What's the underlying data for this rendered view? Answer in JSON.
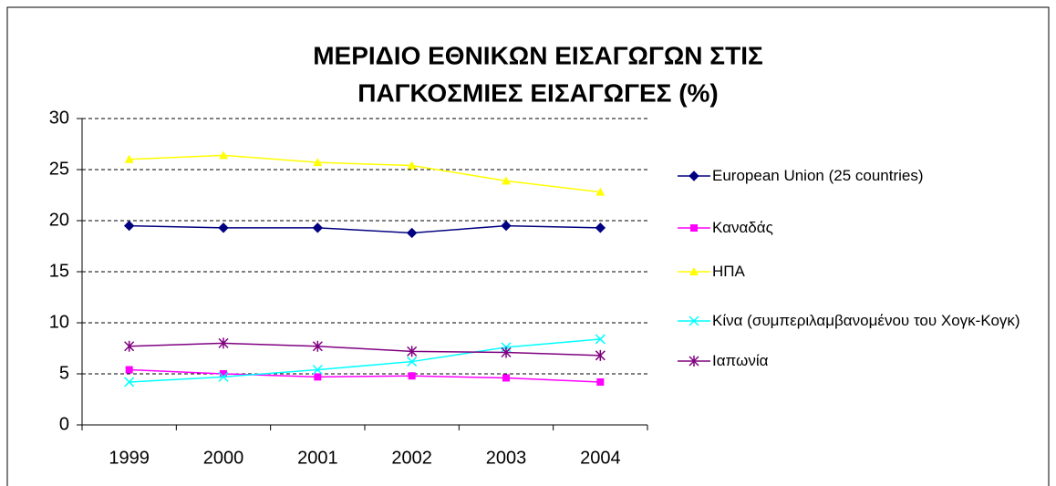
{
  "chart_data": {
    "type": "line",
    "title": [
      "ΜΕΡΙΔΙΟ ΕΘΝΙΚΩΝ ΕΙΣΑΓΩΓΩΝ ΣΤΙΣ",
      "ΠΑΓΚΟΣΜΙΕΣ ΕΙΣΑΓΩΓΕΣ (%)"
    ],
    "categories": [
      "1999",
      "2000",
      "2001",
      "2002",
      "2003",
      "2004"
    ],
    "series": [
      {
        "name": "European Union (25 countries)",
        "color": "#000080",
        "marker": "diamond",
        "values": [
          19.5,
          19.3,
          19.3,
          18.8,
          19.5,
          19.3
        ]
      },
      {
        "name": "Καναδάς",
        "color": "#ff00ff",
        "marker": "square",
        "values": [
          5.4,
          5.0,
          4.7,
          4.8,
          4.6,
          4.2
        ]
      },
      {
        "name": "ΗΠΑ",
        "color": "#ffff00",
        "marker": "triangle",
        "values": [
          26.0,
          26.4,
          25.7,
          25.4,
          23.9,
          22.8
        ]
      },
      {
        "name": "Κίνα (συμπεριλαμβανομένου του Χογκ-Κογκ)",
        "color": "#00ffff",
        "marker": "x",
        "values": [
          4.2,
          4.7,
          5.4,
          6.2,
          7.6,
          8.4
        ]
      },
      {
        "name": "Ιαπωνία",
        "color": "#800080",
        "marker": "star",
        "values": [
          7.7,
          8.0,
          7.7,
          7.2,
          7.1,
          6.8
        ]
      }
    ],
    "ylim": [
      0,
      30
    ],
    "yticks": [
      0,
      5,
      10,
      15,
      20,
      25,
      30
    ],
    "grid": true,
    "legend": "right"
  }
}
